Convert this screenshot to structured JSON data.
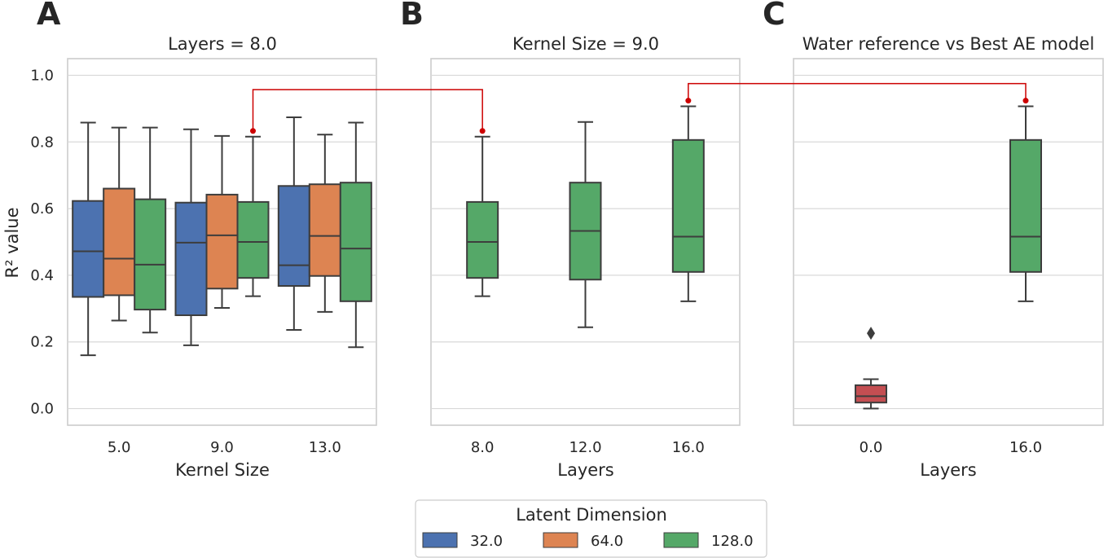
{
  "colors": {
    "blue": "#4c72b0",
    "orange": "#dd8452",
    "green": "#55a868",
    "red": "#c44e52",
    "connector": "#cc0000"
  },
  "chart_data": [
    {
      "type": "box",
      "panel": "A",
      "title": "Layers = 8.0",
      "xlabel": "Kernel Size",
      "ylabel": "R² value",
      "ylim": [
        -0.05,
        1.05
      ],
      "yticks": [
        "0.0",
        "0.2",
        "0.4",
        "0.6",
        "0.8",
        "1.0"
      ],
      "categories": [
        "5.0",
        "9.0",
        "13.0"
      ],
      "series": [
        {
          "name": "32.0",
          "color": "blue",
          "boxes": [
            {
              "whislo": 0.16,
              "q1": 0.335,
              "med": 0.472,
              "q3": 0.623,
              "whishi": 0.858
            },
            {
              "whislo": 0.19,
              "q1": 0.28,
              "med": 0.498,
              "q3": 0.618,
              "whishi": 0.838
            },
            {
              "whislo": 0.236,
              "q1": 0.368,
              "med": 0.43,
              "q3": 0.668,
              "whishi": 0.874
            }
          ]
        },
        {
          "name": "64.0",
          "color": "orange",
          "boxes": [
            {
              "whislo": 0.264,
              "q1": 0.34,
              "med": 0.45,
              "q3": 0.66,
              "whishi": 0.843
            },
            {
              "whislo": 0.302,
              "q1": 0.36,
              "med": 0.52,
              "q3": 0.642,
              "whishi": 0.818
            },
            {
              "whislo": 0.29,
              "q1": 0.398,
              "med": 0.518,
              "q3": 0.673,
              "whishi": 0.822
            }
          ]
        },
        {
          "name": "128.0",
          "color": "green",
          "boxes": [
            {
              "whislo": 0.228,
              "q1": 0.297,
              "med": 0.432,
              "q3": 0.628,
              "whishi": 0.843
            },
            {
              "whislo": 0.337,
              "q1": 0.392,
              "med": 0.5,
              "q3": 0.62,
              "whishi": 0.816,
              "fliers": [
                0.833
              ]
            },
            {
              "whislo": 0.184,
              "q1": 0.322,
              "med": 0.48,
              "q3": 0.678,
              "whishi": 0.858
            }
          ]
        }
      ]
    },
    {
      "type": "box",
      "panel": "B",
      "title": "Kernel Size = 9.0",
      "xlabel": "Layers",
      "ylim": [
        -0.05,
        1.05
      ],
      "categories": [
        "8.0",
        "12.0",
        "16.0"
      ],
      "boxes": [
        {
          "color": "green",
          "whislo": 0.337,
          "q1": 0.392,
          "med": 0.5,
          "q3": 0.62,
          "whishi": 0.816,
          "fliers": [
            0.833
          ]
        },
        {
          "color": "green",
          "whislo": 0.244,
          "q1": 0.387,
          "med": 0.533,
          "q3": 0.678,
          "whishi": 0.86
        },
        {
          "color": "green",
          "whislo": 0.322,
          "q1": 0.41,
          "med": 0.516,
          "q3": 0.806,
          "whishi": 0.907,
          "fliers": [
            0.924
          ]
        }
      ]
    },
    {
      "type": "box",
      "panel": "C",
      "title": "Water reference vs Best AE model",
      "xlabel": "Layers",
      "ylim": [
        -0.05,
        1.05
      ],
      "categories": [
        "0.0",
        "16.0"
      ],
      "boxes": [
        {
          "color": "red",
          "whislo": 0.0,
          "q1": 0.018,
          "med": 0.037,
          "q3": 0.07,
          "whishi": 0.088,
          "fliers": [
            0.226
          ]
        },
        {
          "color": "green",
          "whislo": 0.322,
          "q1": 0.41,
          "med": 0.516,
          "q3": 0.806,
          "whishi": 0.907,
          "fliers": [
            0.924
          ]
        }
      ]
    }
  ],
  "connectors": [
    {
      "from": {
        "panel": 0,
        "category": 1,
        "series": 2,
        "y": 0.833
      },
      "to": {
        "panel": 1,
        "category": 0,
        "y": 0.833
      },
      "top": 0.957
    },
    {
      "from": {
        "panel": 1,
        "category": 2,
        "y": 0.924
      },
      "to": {
        "panel": 2,
        "category": 1,
        "y": 0.924
      },
      "top": 0.975
    }
  ],
  "legend": {
    "title": "Latent Dimension",
    "items": [
      {
        "label": "32.0",
        "color": "blue"
      },
      {
        "label": "64.0",
        "color": "orange"
      },
      {
        "label": "128.0",
        "color": "green"
      }
    ]
  }
}
